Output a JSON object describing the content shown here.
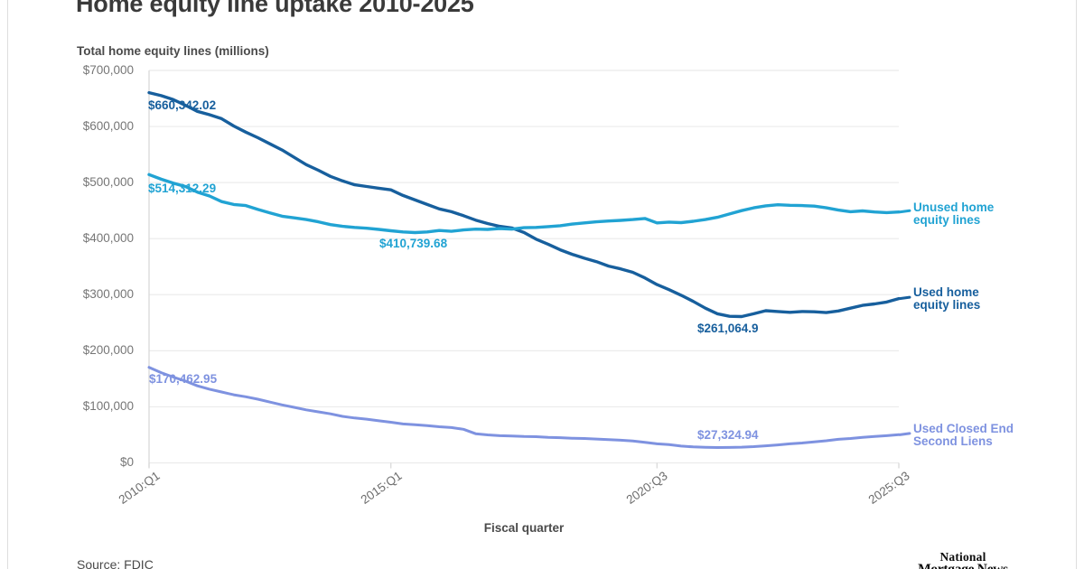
{
  "card": {
    "title": "Home equity line uptake 2010-2025",
    "subtitle": "Total home equity lines (millions)",
    "xaxis_title": "Fiscal quarter",
    "source": "Source: FDIC",
    "logo": {
      "line1": "National",
      "line2": "Mortgage News"
    }
  },
  "colors": {
    "grid": "#ebebeb",
    "axis": "#d6d6d6",
    "border": "#dedede",
    "title_text": "#3a3a3a",
    "axis_text": "#767676"
  },
  "chart_data": {
    "type": "line",
    "title": "Home equity line uptake 2010-2025",
    "subtitle": "Total home equity lines (millions)",
    "xlabel": "Fiscal quarter",
    "ylabel": "Total home equity lines (millions)",
    "ylim": [
      0,
      700000
    ],
    "grid": "horizontal",
    "legend_position": "right-of-line-ends",
    "y_ticks": [
      "$700,000",
      "$600,000",
      "$500,000",
      "$400,000",
      "$300,000",
      "$200,000",
      "$100,000",
      "$0"
    ],
    "y_tick_values": [
      700000,
      600000,
      500000,
      400000,
      300000,
      200000,
      100000,
      0
    ],
    "x_tick_labels": [
      "2010:Q1",
      "2015:Q1",
      "2020:Q3",
      "2025:Q3"
    ],
    "x_tick_quarters": [
      0,
      20,
      42,
      62
    ],
    "quarters": [
      "2010:Q1",
      "2010:Q2",
      "2010:Q3",
      "2010:Q4",
      "2011:Q1",
      "2011:Q2",
      "2011:Q3",
      "2011:Q4",
      "2012:Q1",
      "2012:Q2",
      "2012:Q3",
      "2012:Q4",
      "2013:Q1",
      "2013:Q2",
      "2013:Q3",
      "2013:Q4",
      "2014:Q1",
      "2014:Q2",
      "2014:Q3",
      "2014:Q4",
      "2015:Q1",
      "2015:Q2",
      "2015:Q3",
      "2015:Q4",
      "2016:Q1",
      "2016:Q2",
      "2016:Q3",
      "2016:Q4",
      "2017:Q1",
      "2017:Q2",
      "2017:Q3",
      "2017:Q4",
      "2018:Q1",
      "2018:Q2",
      "2018:Q3",
      "2018:Q4",
      "2019:Q1",
      "2019:Q2",
      "2019:Q3",
      "2019:Q4",
      "2020:Q1",
      "2020:Q2",
      "2020:Q3",
      "2020:Q4",
      "2021:Q1",
      "2021:Q2",
      "2021:Q3",
      "2021:Q4",
      "2022:Q1",
      "2022:Q2",
      "2022:Q3",
      "2022:Q4",
      "2023:Q1",
      "2023:Q2",
      "2023:Q3",
      "2023:Q4",
      "2024:Q1",
      "2024:Q2",
      "2024:Q3",
      "2024:Q4",
      "2025:Q1",
      "2025:Q2",
      "2025:Q3"
    ],
    "series": [
      {
        "name": "Used home equity lines",
        "color": "#175f9d",
        "values": [
          660342.02,
          655000,
          648000,
          638000,
          627000,
          621000,
          614000,
          601000,
          590000,
          580000,
          569000,
          558000,
          545000,
          532000,
          522000,
          511000,
          503000,
          496000,
          493000,
          490000,
          487000,
          477000,
          469000,
          461000,
          453000,
          448000,
          441000,
          433000,
          427000,
          422000,
          419000,
          411000,
          399000,
          390000,
          380000,
          372000,
          365000,
          359000,
          351000,
          346000,
          340000,
          330000,
          318000,
          309000,
          299000,
          288000,
          276000,
          266000,
          261500,
          261064.9,
          266000,
          271500,
          270000,
          268500,
          270000,
          269500,
          268000,
          271000,
          276000,
          281000,
          283500,
          287000,
          293000
        ]
      },
      {
        "name": "Unused home equity lines",
        "color": "#21a3d3",
        "values": [
          514312.29,
          506000,
          499000,
          493000,
          483000,
          476000,
          466000,
          461000,
          459000,
          452000,
          446000,
          440000,
          437000,
          434000,
          430000,
          425000,
          422000,
          420000,
          418500,
          416500,
          414000,
          412000,
          410739.68,
          412000,
          414500,
          413000,
          415500,
          417000,
          416500,
          418000,
          417000,
          419500,
          420000,
          421500,
          423000,
          426000,
          428000,
          430000,
          431500,
          432500,
          434000,
          436000,
          428000,
          429500,
          428500,
          431000,
          434000,
          438000,
          444000,
          450000,
          455000,
          458500,
          460500,
          459500,
          459000,
          458000,
          455000,
          451000,
          448000,
          449500,
          447500,
          446500,
          447500
        ]
      },
      {
        "name": "Used Closed End Second Liens",
        "color": "#7e92e0",
        "values": [
          170462.95,
          161000,
          153000,
          146000,
          137500,
          131500,
          126500,
          121500,
          118000,
          113500,
          108500,
          103500,
          99000,
          94500,
          91000,
          87500,
          83000,
          80000,
          78000,
          75000,
          72500,
          69500,
          68000,
          66500,
          64500,
          63000,
          60000,
          52000,
          50000,
          48500,
          48000,
          47000,
          46800,
          45500,
          45000,
          44000,
          43500,
          42500,
          41500,
          40500,
          39000,
          36500,
          34000,
          32500,
          30000,
          28500,
          27800,
          27324.94,
          27500,
          28000,
          29000,
          30500,
          32000,
          34000,
          35500,
          37500,
          39500,
          42000,
          43500,
          45500,
          47000,
          48500,
          50200
        ]
      }
    ],
    "annotations": [
      {
        "text": "$660,342.02",
        "series": 0,
        "quarter": "2010:Q1",
        "value": 660342.02
      },
      {
        "text": "$514,312.29",
        "series": 1,
        "quarter": "2010:Q1",
        "value": 514312.29
      },
      {
        "text": "$410,739.68",
        "series": 1,
        "quarter": "2015:Q3",
        "value": 410739.68
      },
      {
        "text": "$261,064.9",
        "series": 0,
        "quarter": "2022:Q2",
        "value": 261064.9
      },
      {
        "text": "$170,462.95",
        "series": 2,
        "quarter": "2010:Q1",
        "value": 170462.95
      },
      {
        "text": "$27,324.94",
        "series": 2,
        "quarter": "2021:Q4",
        "value": 27324.94
      }
    ]
  }
}
